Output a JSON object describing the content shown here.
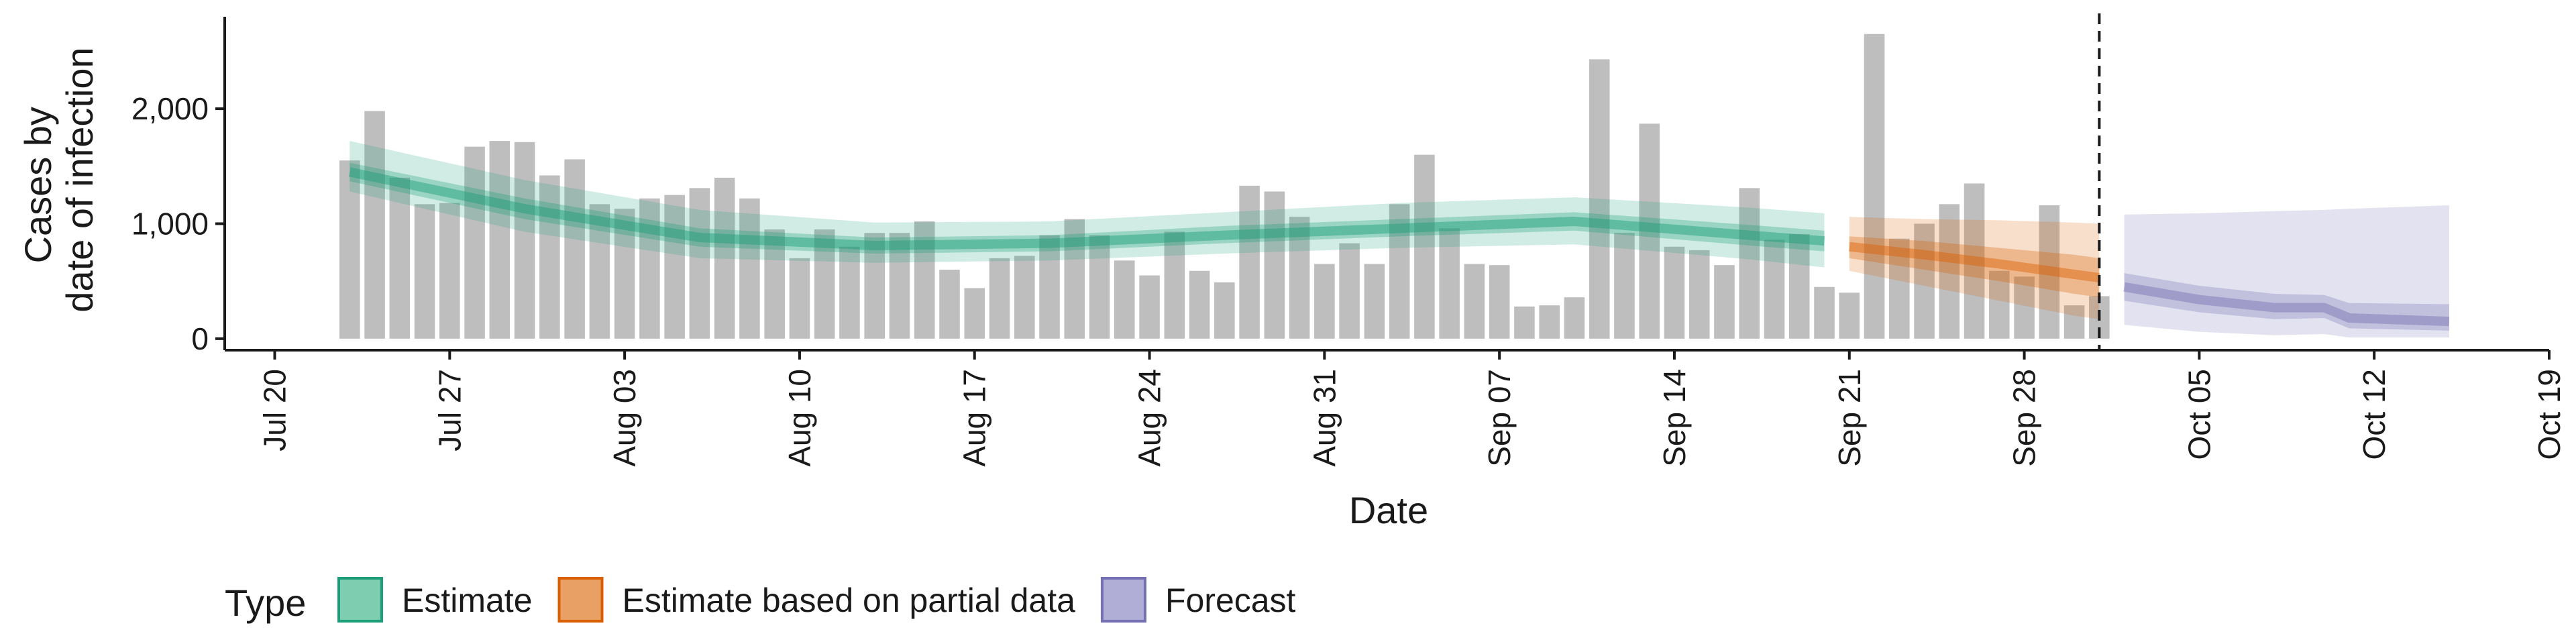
{
  "chart_data": {
    "type": "bar",
    "title": "",
    "xlabel": "Date",
    "ylabel": [
      "Cases by",
      "date of infection"
    ],
    "x_range": [
      "2020-07-18",
      "2020-10-19"
    ],
    "ylim": [
      -100,
      2800
    ],
    "y_ticks": [
      0,
      1000,
      2000
    ],
    "y_tick_labels": [
      "0",
      "1,000",
      "2,000"
    ],
    "x_ticks": [
      "2020-07-20",
      "2020-07-27",
      "2020-08-03",
      "2020-08-10",
      "2020-08-17",
      "2020-08-24",
      "2020-08-31",
      "2020-09-07",
      "2020-09-14",
      "2020-09-21",
      "2020-09-28",
      "2020-10-05",
      "2020-10-12",
      "2020-10-19"
    ],
    "x_tick_labels": [
      "Jul 20",
      "Jul 27",
      "Aug 03",
      "Aug 10",
      "Aug 17",
      "Aug 24",
      "Aug 31",
      "Sep 07",
      "Sep 14",
      "Sep 21",
      "Sep 28",
      "Oct 05",
      "Oct 12",
      "Oct 19"
    ],
    "grid": false,
    "forecast_cutoff": "2020-10-01",
    "bars": {
      "start_date": "2020-07-23",
      "values": [
        1550,
        1980,
        1400,
        1170,
        1180,
        1670,
        1720,
        1710,
        1420,
        1560,
        1170,
        1130,
        1220,
        1250,
        1310,
        1400,
        1220,
        950,
        700,
        950,
        800,
        920,
        920,
        1020,
        600,
        440,
        700,
        720,
        900,
        1040,
        900,
        680,
        550,
        930,
        590,
        490,
        1330,
        1280,
        1060,
        650,
        830,
        650,
        1170,
        1600,
        960,
        650,
        640,
        280,
        290,
        360,
        2430,
        920,
        1870,
        800,
        770,
        640,
        1310,
        860,
        910,
        450,
        400,
        2650,
        870,
        1000,
        1170,
        1350,
        590,
        540,
        1160,
        290,
        370
      ]
    },
    "series": [
      {
        "name": "Estimate",
        "color": "#1b9e77",
        "dates": [
          "2020-07-23",
          "2020-07-30",
          "2020-08-06",
          "2020-08-13",
          "2020-08-20",
          "2020-08-27",
          "2020-09-03",
          "2020-09-10",
          "2020-09-17",
          "2020-09-20"
        ],
        "median": [
          1450,
          1130,
          880,
          810,
          830,
          900,
          960,
          1020,
          900,
          850
        ],
        "inner_low": [
          1370,
          1040,
          800,
          740,
          760,
          830,
          890,
          940,
          810,
          760
        ],
        "inner_high": [
          1530,
          1220,
          960,
          880,
          900,
          980,
          1040,
          1100,
          990,
          940
        ],
        "outer_low": [
          1280,
          930,
          700,
          660,
          680,
          740,
          790,
          820,
          690,
          620
        ],
        "outer_high": [
          1720,
          1380,
          1120,
          1010,
          1020,
          1100,
          1180,
          1230,
          1140,
          1090
        ]
      },
      {
        "name": "Estimate based on partial data",
        "color": "#d95f02",
        "dates": [
          "2020-09-21",
          "2020-09-24",
          "2020-09-27",
          "2020-09-30",
          "2020-10-01"
        ],
        "median": [
          800,
          730,
          650,
          560,
          530
        ],
        "inner_low": [
          700,
          600,
          500,
          390,
          360
        ],
        "inner_high": [
          890,
          850,
          790,
          730,
          700
        ],
        "outer_low": [
          590,
          460,
          330,
          200,
          170
        ],
        "outer_high": [
          1060,
          1040,
          1030,
          1010,
          1000
        ]
      },
      {
        "name": "Forecast",
        "color": "#7570b3",
        "dates": [
          "2020-10-02",
          "2020-10-05",
          "2020-10-08",
          "2020-10-10",
          "2020-10-11",
          "2020-10-15"
        ],
        "median": [
          450,
          340,
          270,
          270,
          180,
          150
        ],
        "inner_low": [
          330,
          230,
          170,
          180,
          90,
          70
        ],
        "inner_high": [
          570,
          460,
          390,
          380,
          310,
          300
        ],
        "outer_low": [
          120,
          60,
          30,
          40,
          10,
          10
        ],
        "outer_high": [
          1080,
          1090,
          1110,
          1120,
          1130,
          1160
        ]
      }
    ],
    "legend": {
      "title": "Type",
      "position": "bottom-left",
      "items": [
        {
          "label": "Estimate",
          "fill": "#7fcdb0",
          "stroke": "#1b9e77"
        },
        {
          "label": "Estimate based on partial data",
          "fill": "#e9a064",
          "stroke": "#d95f02"
        },
        {
          "label": "Forecast",
          "fill": "#b0aed6",
          "stroke": "#7570b3"
        }
      ]
    },
    "bar_color": "#bebebe"
  }
}
